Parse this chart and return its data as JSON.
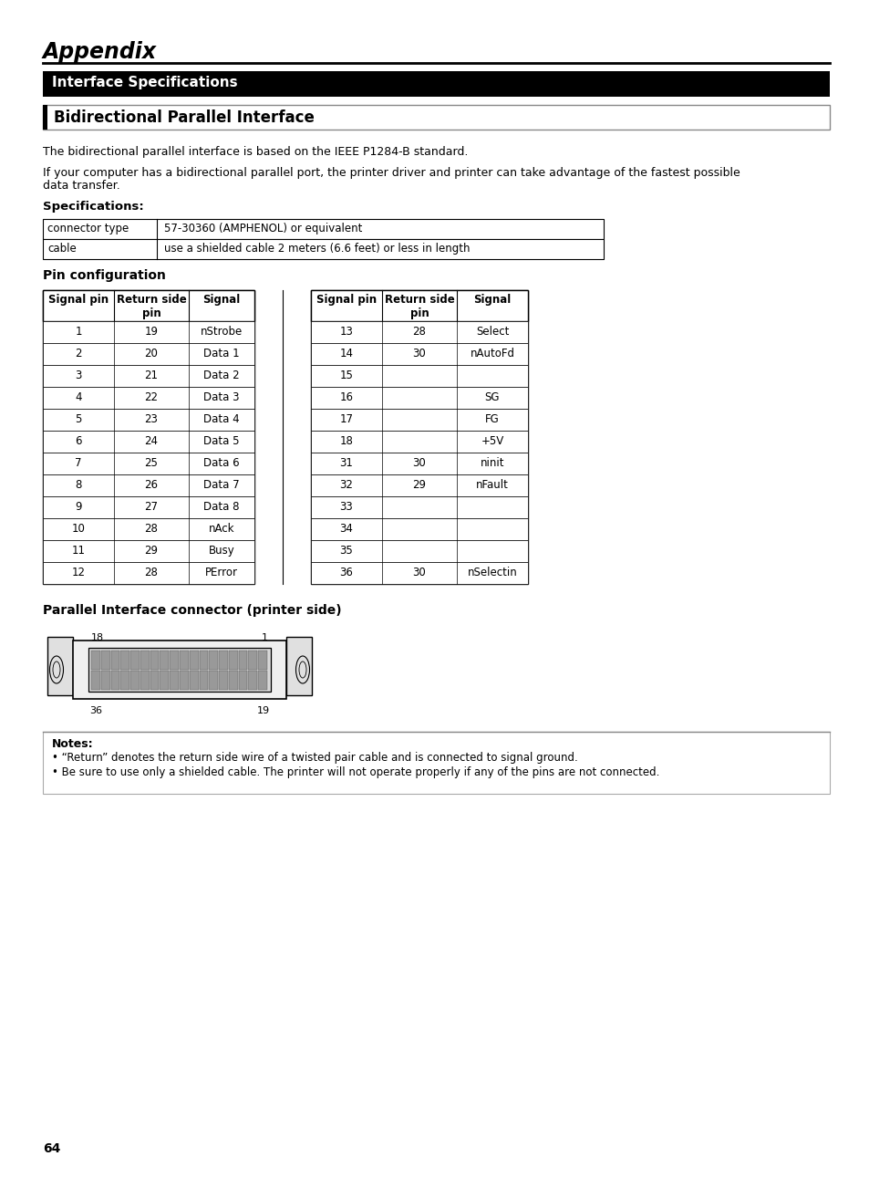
{
  "title_appendix": "Appendix",
  "section_header": "Interface Specifications",
  "subsection_header": "Bidirectional Parallel Interface",
  "para1": "The bidirectional parallel interface is based on the IEEE P1284-B standard.",
  "para2_line1": "If your computer has a bidirectional parallel port, the printer driver and printer can take advantage of the fastest possible",
  "para2_line2": "data transfer.",
  "specs_label": "Specifications:",
  "spec_table": [
    [
      "connector type",
      "57-30360 (AMPHENOL) or equivalent"
    ],
    [
      "cable",
      "use a shielded cable 2 meters (6.6 feet) or less in length"
    ]
  ],
  "pin_config_label": "Pin configuration",
  "left_table_headers": [
    "Signal pin",
    "Return side\npin",
    "Signal"
  ],
  "left_table_rows": [
    [
      "1",
      "19",
      "nStrobe"
    ],
    [
      "2",
      "20",
      "Data 1"
    ],
    [
      "3",
      "21",
      "Data 2"
    ],
    [
      "4",
      "22",
      "Data 3"
    ],
    [
      "5",
      "23",
      "Data 4"
    ],
    [
      "6",
      "24",
      "Data 5"
    ],
    [
      "7",
      "25",
      "Data 6"
    ],
    [
      "8",
      "26",
      "Data 7"
    ],
    [
      "9",
      "27",
      "Data 8"
    ],
    [
      "10",
      "28",
      "nAck"
    ],
    [
      "11",
      "29",
      "Busy"
    ],
    [
      "12",
      "28",
      "PError"
    ]
  ],
  "right_table_headers": [
    "Signal pin",
    "Return side\npin",
    "Signal"
  ],
  "right_table_rows": [
    [
      "13",
      "28",
      "Select"
    ],
    [
      "14",
      "30",
      "nAutoFd"
    ],
    [
      "15",
      "",
      ""
    ],
    [
      "16",
      "",
      "SG"
    ],
    [
      "17",
      "",
      "FG"
    ],
    [
      "18",
      "",
      "+5V"
    ],
    [
      "31",
      "30",
      "ninit"
    ],
    [
      "32",
      "29",
      "nFault"
    ],
    [
      "33",
      "",
      ""
    ],
    [
      "34",
      "",
      ""
    ],
    [
      "35",
      "",
      ""
    ],
    [
      "36",
      "30",
      "nSelectin"
    ]
  ],
  "connector_label": "Parallel Interface connector (printer side)",
  "notes_title": "Notes:",
  "note1": "• “Return” denotes the return side wire of a twisted pair cable and is connected to signal ground.",
  "note2": "• Be sure to use only a shielded cable. The printer will not operate properly if any of the pins are not connected.",
  "page_number": "64"
}
